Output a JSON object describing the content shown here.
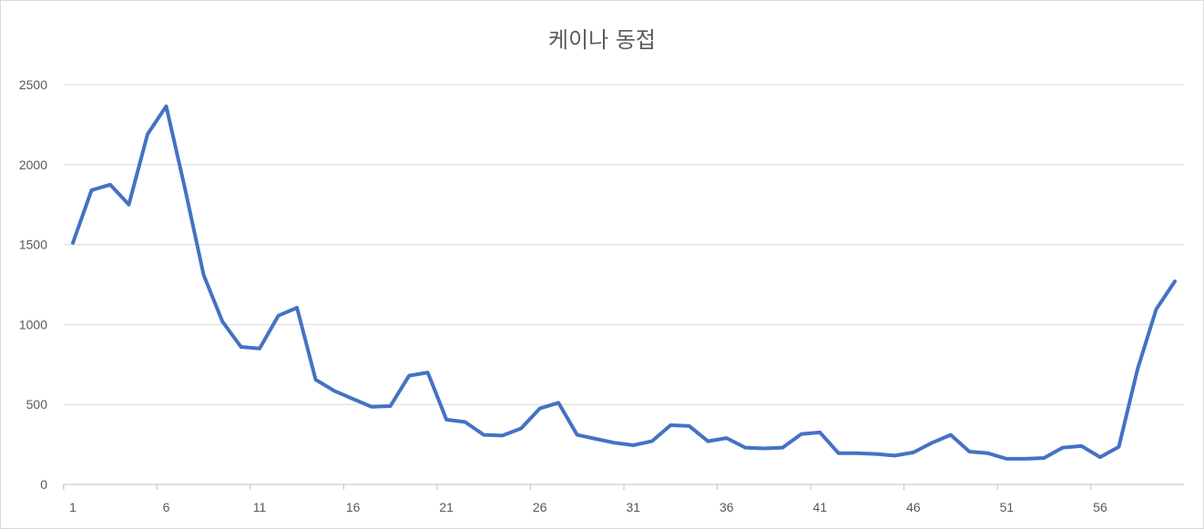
{
  "chart_data": {
    "type": "line",
    "title": "케이나 동접",
    "xlabel": "",
    "ylabel": "",
    "ylim": [
      0,
      2500
    ],
    "yticks": [
      0,
      500,
      1000,
      1500,
      2000,
      2500
    ],
    "x_tick_labels": [
      1,
      6,
      11,
      16,
      21,
      26,
      31,
      36,
      41,
      46,
      51,
      56
    ],
    "grid": true,
    "legend": "none",
    "series": [
      {
        "color": "#4472c4",
        "x": [
          1,
          2,
          3,
          4,
          5,
          6,
          7,
          8,
          9,
          10,
          11,
          12,
          13,
          14,
          15,
          16,
          17,
          18,
          19,
          20,
          21,
          22,
          23,
          24,
          25,
          26,
          27,
          28,
          29,
          30,
          31,
          32,
          33,
          34,
          35,
          36,
          37,
          38,
          39,
          40,
          41,
          42,
          43,
          44,
          45,
          46,
          47,
          48,
          49,
          50,
          51,
          52,
          53,
          54,
          55,
          56,
          57,
          58,
          59,
          60
        ],
        "values": [
          1510,
          1840,
          1875,
          1750,
          2190,
          2365,
          1850,
          1310,
          1020,
          860,
          850,
          1055,
          1105,
          655,
          585,
          535,
          485,
          490,
          680,
          700,
          405,
          390,
          310,
          305,
          350,
          475,
          510,
          310,
          285,
          260,
          245,
          270,
          370,
          365,
          270,
          290,
          230,
          225,
          230,
          315,
          325,
          195,
          195,
          190,
          180,
          200,
          260,
          310,
          205,
          195,
          160,
          160,
          165,
          230,
          240,
          170,
          235,
          720,
          1095,
          1270
        ]
      }
    ]
  }
}
